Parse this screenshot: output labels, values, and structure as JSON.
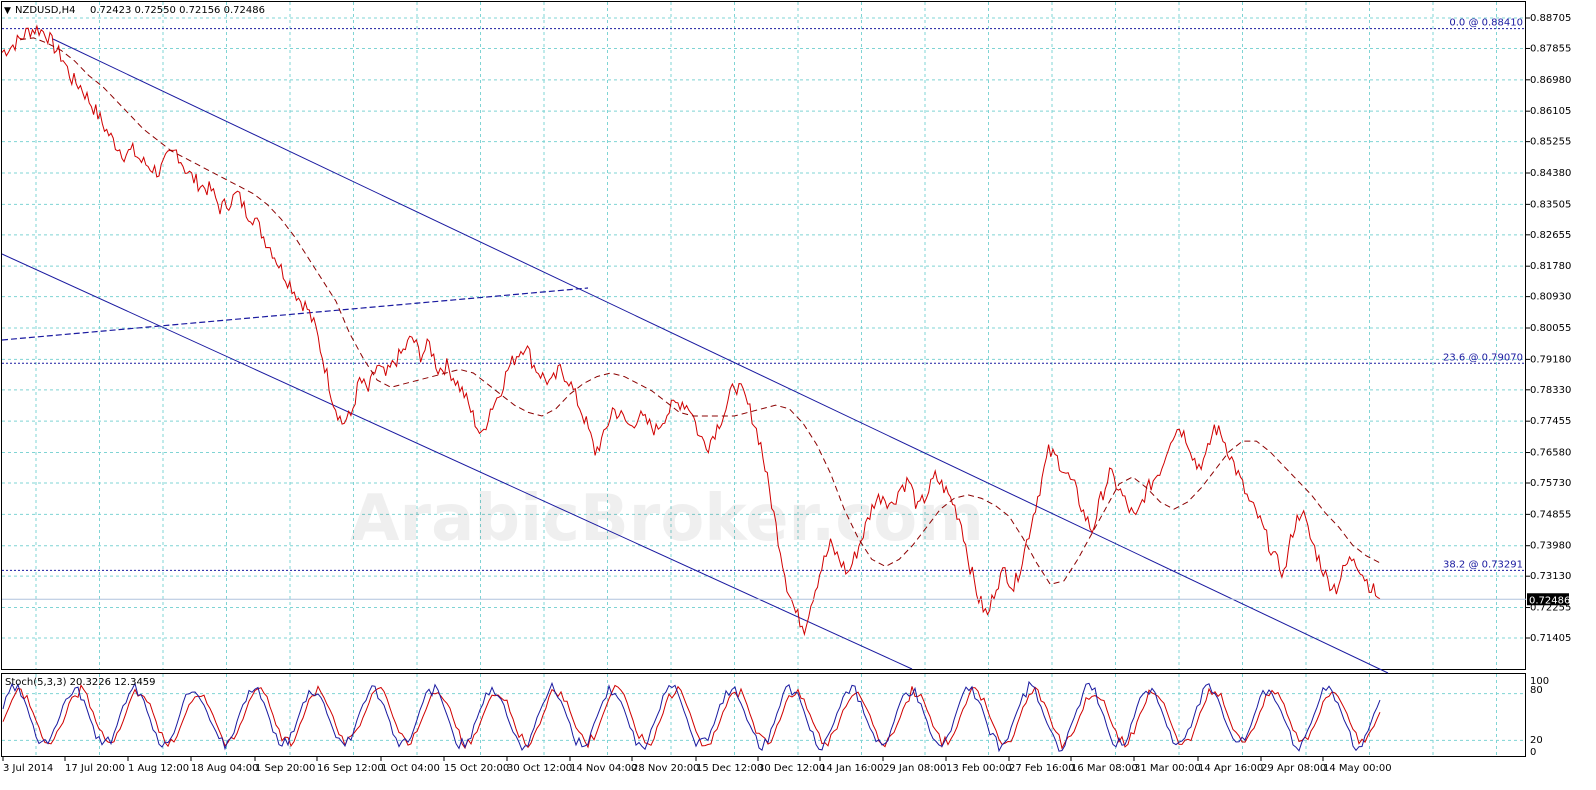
{
  "header": {
    "symbol": "NZDUSD,H4",
    "ohlc": "0.72423 0.72550 0.72156 0.72486"
  },
  "watermark": "ArabicBroker.com",
  "stoch_header": "Stoch(5,3,3) 20.3226 12.3459",
  "colors": {
    "price": "#d00000",
    "ma": "#8b0000",
    "channel": "#1a1aa0",
    "grid": "#7fd4d4",
    "fib": "#1a1aa0",
    "stoch_main": "#1a1aa0",
    "stoch_signal": "#d00000"
  },
  "chart_data": {
    "type": "line",
    "price_ticks": [
      "0.88705",
      "0.87855",
      "0.86980",
      "0.86105",
      "0.85255",
      "0.84380",
      "0.83505",
      "0.82655",
      "0.81780",
      "0.80930",
      "0.80055",
      "0.79180",
      "0.78330",
      "0.77455",
      "0.76580",
      "0.75730",
      "0.74855",
      "0.73980",
      "0.73130",
      "0.72255",
      "0.71405"
    ],
    "ylim": [
      0.71405,
      0.88705
    ],
    "time_ticks": [
      "3 Jul 2014",
      "17 Jul 20:00",
      "1 Aug 12:00",
      "18 Aug 04:00",
      "1 Sep 20:00",
      "16 Sep 12:00",
      "1 Oct 04:00",
      "15 Oct 20:00",
      "30 Oct 12:00",
      "14 Nov 04:00",
      "28 Nov 20:00",
      "15 Dec 12:00",
      "30 Dec 12:00",
      "14 Jan 16:00",
      "29 Jan 08:00",
      "13 Feb 00:00",
      "27 Feb 16:00",
      "16 Mar 08:00",
      "31 Mar 00:00",
      "14 Apr 16:00",
      "29 Apr 08:00",
      "14 May 00:00"
    ],
    "current_price": "0.72486",
    "fib_levels": [
      {
        "label": "0.0 @ 0.88410",
        "value": 0.8841
      },
      {
        "label": "23.6 @ 0.79070",
        "value": 0.7907
      },
      {
        "label": "38.2 @ 0.73291",
        "value": 0.73291
      }
    ],
    "current_price_value": 0.72486,
    "price_points": [
      0.8775,
      0.879,
      0.881,
      0.8835,
      0.884,
      0.883,
      0.879,
      0.8755,
      0.87,
      0.868,
      0.864,
      0.86,
      0.8555,
      0.852,
      0.849,
      0.85,
      0.847,
      0.8455,
      0.844,
      0.848,
      0.85,
      0.845,
      0.842,
      0.84,
      0.839,
      0.834,
      0.8355,
      0.838,
      0.833,
      0.831,
      0.826,
      0.822,
      0.817,
      0.813,
      0.809,
      0.806,
      0.8,
      0.79,
      0.78,
      0.774,
      0.776,
      0.786,
      0.783,
      0.79,
      0.787,
      0.791,
      0.794,
      0.798,
      0.793,
      0.796,
      0.789,
      0.79,
      0.786,
      0.782,
      0.776,
      0.77,
      0.778,
      0.782,
      0.789,
      0.793,
      0.796,
      0.79,
      0.787,
      0.785,
      0.789,
      0.786,
      0.78,
      0.774,
      0.766,
      0.77,
      0.778,
      0.776,
      0.773,
      0.776,
      0.774,
      0.772,
      0.776,
      0.779,
      0.78,
      0.778,
      0.77,
      0.768,
      0.773,
      0.778,
      0.785,
      0.782,
      0.776,
      0.768,
      0.755,
      0.742,
      0.729,
      0.721,
      0.717,
      0.726,
      0.734,
      0.74,
      0.736,
      0.732,
      0.738,
      0.745,
      0.752,
      0.754,
      0.751,
      0.756,
      0.758,
      0.75,
      0.754,
      0.759,
      0.756,
      0.752,
      0.746,
      0.734,
      0.725,
      0.72,
      0.729,
      0.733,
      0.728,
      0.736,
      0.746,
      0.756,
      0.766,
      0.764,
      0.76,
      0.756,
      0.749,
      0.744,
      0.753,
      0.76,
      0.756,
      0.751,
      0.747,
      0.754,
      0.758,
      0.762,
      0.77,
      0.773,
      0.769,
      0.762,
      0.764,
      0.773,
      0.77,
      0.764,
      0.758,
      0.752,
      0.748,
      0.742,
      0.736,
      0.732,
      0.744,
      0.75,
      0.742,
      0.736,
      0.73,
      0.728,
      0.734,
      0.737,
      0.732,
      0.728,
      0.725
    ],
    "ma_points": [
      0.881,
      0.8815,
      0.88,
      0.878,
      0.875,
      0.871,
      0.868,
      0.864,
      0.86,
      0.856,
      0.853,
      0.85,
      0.848,
      0.846,
      0.844,
      0.842,
      0.84,
      0.838,
      0.835,
      0.831,
      0.826,
      0.82,
      0.814,
      0.808,
      0.799,
      0.792,
      0.786,
      0.784,
      0.785,
      0.786,
      0.787,
      0.788,
      0.789,
      0.788,
      0.785,
      0.782,
      0.779,
      0.777,
      0.776,
      0.778,
      0.782,
      0.785,
      0.787,
      0.788,
      0.787,
      0.785,
      0.783,
      0.78,
      0.777,
      0.776,
      0.776,
      0.776,
      0.776,
      0.777,
      0.778,
      0.779,
      0.778,
      0.774,
      0.768,
      0.76,
      0.75,
      0.742,
      0.736,
      0.734,
      0.736,
      0.74,
      0.745,
      0.75,
      0.753,
      0.754,
      0.753,
      0.751,
      0.748,
      0.742,
      0.735,
      0.729,
      0.73,
      0.736,
      0.743,
      0.75,
      0.757,
      0.759,
      0.756,
      0.752,
      0.75,
      0.752,
      0.756,
      0.761,
      0.766,
      0.769,
      0.769,
      0.766,
      0.762,
      0.758,
      0.754,
      0.749,
      0.745,
      0.74,
      0.737,
      0.735
    ]
  }
}
